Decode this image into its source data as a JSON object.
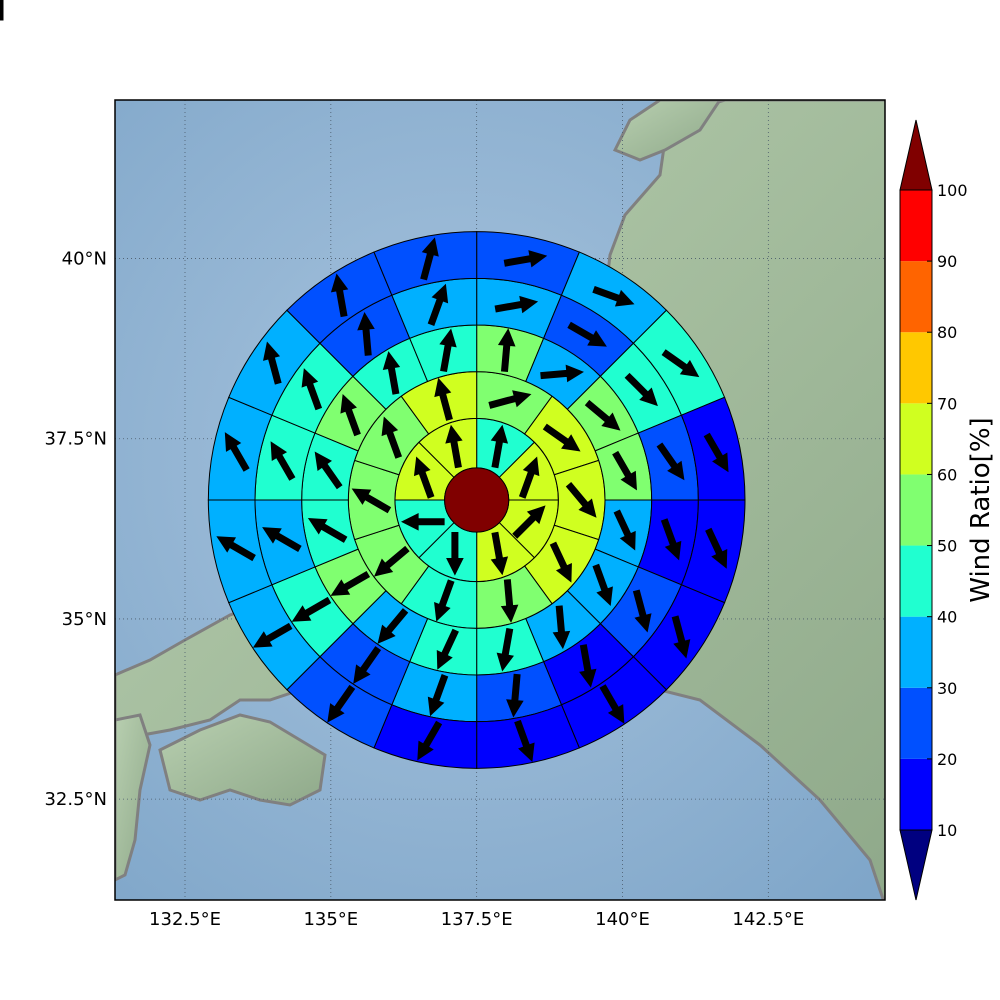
{
  "chart_data": {
    "type": "heatmap",
    "title": "",
    "map": {
      "xlim": [
        131.3,
        144.5
      ],
      "ylim": [
        31.1,
        42.2
      ],
      "xticks": [
        132.5,
        135,
        137.5,
        140,
        142.5
      ],
      "xtick_labels": [
        "132.5°E",
        "135°E",
        "137.5°E",
        "140°E",
        "142.5°E"
      ],
      "yticks": [
        32.5,
        35,
        37.5,
        40
      ],
      "ytick_labels": [
        "32.5°N",
        "35°N",
        "37.5°N",
        "40°N"
      ],
      "grid": true,
      "background": "shaded relief map of central Japan",
      "coastline_color": "#808080"
    },
    "rose": {
      "center_lon": 137.5,
      "center_lat": 36.65,
      "center_value": 100,
      "ring_radii_deg": [
        0.55,
        1.4,
        2.2,
        3.0,
        3.8,
        4.6
      ],
      "sector_count": 16,
      "rings": [
        {
          "sectors": [
            {
              "value": 45,
              "dir": 10
            },
            {
              "value": 65,
              "dir": 20
            },
            {
              "value": 65,
              "dir": 45
            },
            {
              "value": 65,
              "dir": 170
            },
            {
              "value": 45,
              "dir": 180
            },
            {
              "value": 45,
              "dir": 270
            },
            {
              "value": 65,
              "dir": 340
            },
            {
              "value": 65,
              "dir": 350
            }
          ]
        },
        {
          "sectors": [
            {
              "value": 55,
              "dir": 75
            },
            {
              "value": 65,
              "dir": 125
            },
            {
              "value": 65,
              "dir": 140
            },
            {
              "value": 65,
              "dir": 155
            },
            {
              "value": 55,
              "dir": 175
            },
            {
              "value": 45,
              "dir": 200
            },
            {
              "value": 55,
              "dir": 230
            },
            {
              "value": 55,
              "dir": 300
            },
            {
              "value": 55,
              "dir": 340
            },
            {
              "value": 65,
              "dir": 345
            }
          ]
        },
        {
          "sectors": [
            {
              "value": 55,
              "dir": 5
            },
            {
              "value": 35,
              "dir": 85
            },
            {
              "value": 55,
              "dir": 130
            },
            {
              "value": 55,
              "dir": 150
            },
            {
              "value": 35,
              "dir": 155
            },
            {
              "value": 35,
              "dir": 160
            },
            {
              "value": 35,
              "dir": 175
            },
            {
              "value": 45,
              "dir": 190
            },
            {
              "value": 45,
              "dir": 205
            },
            {
              "value": 35,
              "dir": 220
            },
            {
              "value": 55,
              "dir": 240
            },
            {
              "value": 45,
              "dir": 300
            },
            {
              "value": 45,
              "dir": 325
            },
            {
              "value": 55,
              "dir": 340
            },
            {
              "value": 45,
              "dir": 350
            },
            {
              "value": 45,
              "dir": 10
            }
          ]
        },
        {
          "sectors": [
            {
              "value": 35,
              "dir": 80
            },
            {
              "value": 25,
              "dir": 120
            },
            {
              "value": 45,
              "dir": 135
            },
            {
              "value": 25,
              "dir": 145
            },
            {
              "value": 15,
              "dir": 160
            },
            {
              "value": 25,
              "dir": 165
            },
            {
              "value": 15,
              "dir": 170
            },
            {
              "value": 25,
              "dir": 185
            },
            {
              "value": 35,
              "dir": 200
            },
            {
              "value": 25,
              "dir": 215
            },
            {
              "value": 45,
              "dir": 240
            },
            {
              "value": 35,
              "dir": 300
            },
            {
              "value": 45,
              "dir": 330
            },
            {
              "value": 45,
              "dir": 340
            },
            {
              "value": 25,
              "dir": 355
            },
            {
              "value": 35,
              "dir": 20
            }
          ]
        },
        {
          "sectors": [
            {
              "value": 25,
              "dir": 80
            },
            {
              "value": 35,
              "dir": 110
            },
            {
              "value": 45,
              "dir": 125
            },
            {
              "value": 15,
              "dir": 150
            },
            {
              "value": 15,
              "dir": 155
            },
            {
              "value": 15,
              "dir": 165
            },
            {
              "value": 15,
              "dir": 150
            },
            {
              "value": 15,
              "dir": 160
            },
            {
              "value": 15,
              "dir": 210
            },
            {
              "value": 25,
              "dir": 215
            },
            {
              "value": 35,
              "dir": 240
            },
            {
              "value": 35,
              "dir": 300
            },
            {
              "value": 35,
              "dir": 330
            },
            {
              "value": 35,
              "dir": 345
            },
            {
              "value": 25,
              "dir": 350
            },
            {
              "value": 25,
              "dir": 15
            }
          ]
        },
        {
          "sectors": [
            {
              "value": 15,
              "dir": 80
            },
            {
              "value": 25,
              "dir": 120
            },
            {
              "value": 35,
              "dir": 135
            },
            {
              "value": 25,
              "dir": 155
            },
            {
              "value": 5,
              "dir": 140
            },
            {
              "value": 5,
              "dir": 165
            },
            {
              "value": 5,
              "dir": 120
            },
            {
              "value": 5,
              "dir": 160
            },
            {
              "value": 5,
              "dir": 215
            },
            {
              "value": 15,
              "dir": 235
            },
            {
              "value": 25,
              "dir": 240
            },
            {
              "value": 35,
              "dir": 300
            },
            {
              "value": 35,
              "dir": 330
            },
            {
              "value": 45,
              "dir": 350
            },
            {
              "value": 35,
              "dir": 5
            },
            {
              "value": 15,
              "dir": 80
            }
          ]
        }
      ]
    },
    "colorbar": {
      "label": "Wind Ratio[%]",
      "tick_values": [
        10,
        20,
        30,
        40,
        50,
        60,
        70,
        80,
        90,
        100
      ],
      "tick_labels": [
        "10",
        "20",
        "30",
        "40",
        "50",
        "60",
        "70",
        "80",
        "90",
        "100"
      ],
      "range": [
        10,
        100
      ],
      "extend": "both",
      "colors": [
        "#0000ff",
        "#0050ff",
        "#00b0ff",
        "#20ffd0",
        "#80ff70",
        "#d0ff20",
        "#ffc800",
        "#ff6400",
        "#ff0000"
      ],
      "under_color": "#000080",
      "over_color": "#800000"
    }
  }
}
